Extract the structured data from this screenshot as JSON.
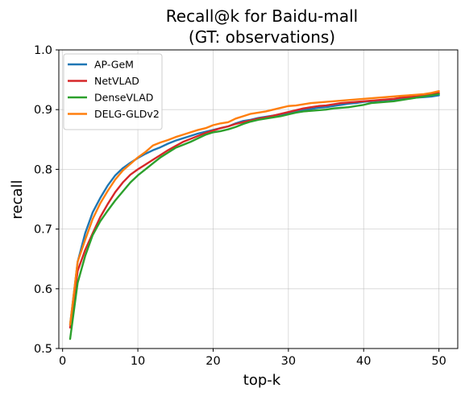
{
  "chart_data": {
    "type": "line",
    "title": [
      "Recall@k for Baidu-mall",
      "(GT: observations)"
    ],
    "xlabel": "top-k",
    "ylabel": "recall",
    "xlim": [
      -0.5,
      52.5
    ],
    "ylim": [
      0.5,
      1.0
    ],
    "xticks": [
      0,
      10,
      20,
      30,
      40,
      50
    ],
    "yticks": [
      0.5,
      0.6,
      0.7,
      0.8,
      0.9,
      1.0
    ],
    "xtick_labels": [
      "0",
      "10",
      "20",
      "30",
      "40",
      "50"
    ],
    "ytick_labels": [
      "0.5",
      "0.6",
      "0.7",
      "0.8",
      "0.9",
      "1.0"
    ],
    "grid": true,
    "legend_position": "top-left",
    "x": [
      1,
      2,
      3,
      4,
      5,
      6,
      7,
      8,
      9,
      10,
      11,
      12,
      13,
      14,
      15,
      16,
      17,
      18,
      19,
      20,
      21,
      22,
      23,
      24,
      25,
      26,
      27,
      28,
      29,
      30,
      31,
      32,
      33,
      34,
      35,
      36,
      37,
      38,
      39,
      40,
      41,
      42,
      43,
      44,
      45,
      46,
      47,
      48,
      49,
      50
    ],
    "series": [
      {
        "name": "AP-GeM",
        "color": "#1f77b4",
        "values": [
          0.54,
          0.645,
          0.693,
          0.728,
          0.752,
          0.773,
          0.79,
          0.802,
          0.811,
          0.819,
          0.826,
          0.832,
          0.837,
          0.843,
          0.848,
          0.852,
          0.856,
          0.86,
          0.863,
          0.866,
          0.869,
          0.872,
          0.877,
          0.881,
          0.883,
          0.886,
          0.888,
          0.89,
          0.892,
          0.894,
          0.897,
          0.899,
          0.901,
          0.903,
          0.904,
          0.906,
          0.908,
          0.91,
          0.911,
          0.913,
          0.914,
          0.915,
          0.916,
          0.917,
          0.918,
          0.919,
          0.92,
          0.921,
          0.922,
          0.924
        ]
      },
      {
        "name": "NetVLAD",
        "color": "#d62728",
        "values": [
          0.535,
          0.63,
          0.665,
          0.693,
          0.72,
          0.742,
          0.762,
          0.778,
          0.791,
          0.8,
          0.808,
          0.816,
          0.824,
          0.832,
          0.839,
          0.846,
          0.851,
          0.856,
          0.861,
          0.865,
          0.869,
          0.872,
          0.876,
          0.879,
          0.882,
          0.885,
          0.887,
          0.89,
          0.893,
          0.896,
          0.899,
          0.902,
          0.904,
          0.906,
          0.907,
          0.909,
          0.911,
          0.912,
          0.913,
          0.914,
          0.915,
          0.916,
          0.917,
          0.918,
          0.92,
          0.921,
          0.922,
          0.924,
          0.926,
          0.928
        ]
      },
      {
        "name": "DenseVLAD",
        "color": "#2ca02c",
        "values": [
          0.516,
          0.61,
          0.655,
          0.69,
          0.713,
          0.731,
          0.748,
          0.763,
          0.778,
          0.79,
          0.8,
          0.81,
          0.82,
          0.828,
          0.836,
          0.841,
          0.846,
          0.852,
          0.858,
          0.862,
          0.864,
          0.867,
          0.871,
          0.876,
          0.88,
          0.883,
          0.885,
          0.887,
          0.889,
          0.892,
          0.895,
          0.897,
          0.898,
          0.899,
          0.9,
          0.902,
          0.903,
          0.904,
          0.906,
          0.908,
          0.911,
          0.912,
          0.913,
          0.914,
          0.916,
          0.918,
          0.92,
          0.922,
          0.924,
          0.926
        ]
      },
      {
        "name": "DELG-GLDv2",
        "color": "#ff7f0e",
        "values": [
          0.54,
          0.645,
          0.682,
          0.717,
          0.743,
          0.764,
          0.783,
          0.798,
          0.809,
          0.82,
          0.829,
          0.84,
          0.845,
          0.849,
          0.854,
          0.858,
          0.862,
          0.866,
          0.869,
          0.874,
          0.877,
          0.879,
          0.885,
          0.889,
          0.893,
          0.895,
          0.897,
          0.9,
          0.903,
          0.906,
          0.907,
          0.909,
          0.911,
          0.912,
          0.913,
          0.914,
          0.915,
          0.916,
          0.917,
          0.918,
          0.919,
          0.92,
          0.921,
          0.922,
          0.923,
          0.924,
          0.925,
          0.926,
          0.928,
          0.931
        ]
      }
    ]
  }
}
